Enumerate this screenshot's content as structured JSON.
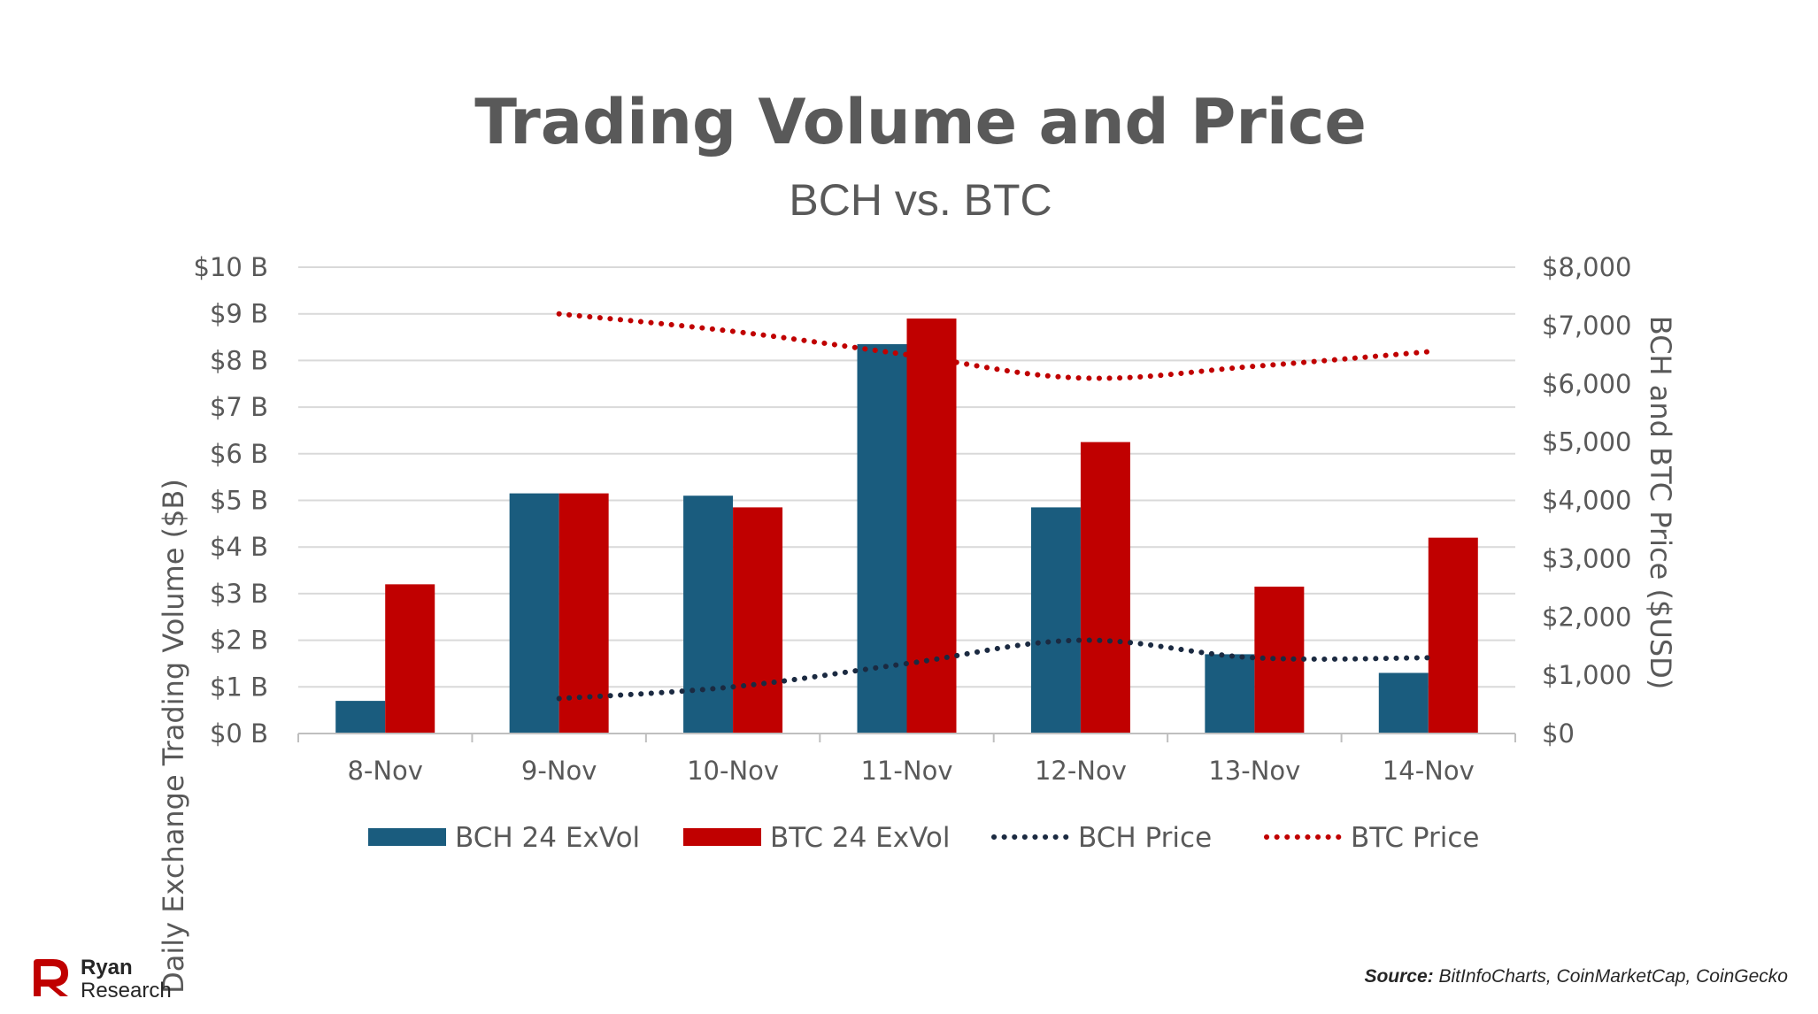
{
  "chart_data": {
    "type": "bar",
    "title": "Trading Volume and Price",
    "subtitle": "BCH vs. BTC",
    "categories": [
      "8-Nov",
      "9-Nov",
      "10-Nov",
      "11-Nov",
      "12-Nov",
      "13-Nov",
      "14-Nov"
    ],
    "ylabel": "Daily Exchange Trading Volume ($B)",
    "y2label": "BCH and BTC Price ($USD)",
    "ylim": [
      0,
      10
    ],
    "y2lim": [
      0,
      8000
    ],
    "yticks": [
      "$0 B",
      "$1 B",
      "$2 B",
      "$3 B",
      "$4 B",
      "$5 B",
      "$6 B",
      "$7 B",
      "$8 B",
      "$9 B",
      "$10 B"
    ],
    "y2ticks": [
      "$0",
      "$1,000",
      "$2,000",
      "$3,000",
      "$4,000",
      "$5,000",
      "$6,000",
      "$7,000",
      "$8,000"
    ],
    "gridlines": true,
    "legend_position": "bottom",
    "bar_series": [
      {
        "name": "BCH 24 ExVol",
        "color": "#1a5c7e",
        "values": [
          0.7,
          5.15,
          5.1,
          8.35,
          4.85,
          1.7,
          1.3
        ]
      },
      {
        "name": "BTC 24 ExVol",
        "color": "#c00000",
        "values": [
          3.2,
          5.15,
          4.85,
          8.9,
          6.25,
          3.15,
          4.2
        ]
      }
    ],
    "line_series": [
      {
        "name": "BCH Price",
        "color": "#1b2a41",
        "axis": "right",
        "style": "dotted",
        "values": [
          null,
          600,
          800,
          1200,
          1600,
          1300,
          1300
        ]
      },
      {
        "name": "BTC Price",
        "color": "#c00000",
        "axis": "right",
        "style": "dotted",
        "values": [
          null,
          7200,
          6900,
          6500,
          6100,
          6300,
          6550
        ]
      }
    ]
  },
  "branding": {
    "logo_line1": "Ryan",
    "logo_line2": "Research",
    "logo_color": "#c00000",
    "logo_icon": "ryan-r-logo-icon"
  },
  "source": {
    "label": "Source:",
    "text": " BitInfoCharts, CoinMarketCap, CoinGecko"
  }
}
